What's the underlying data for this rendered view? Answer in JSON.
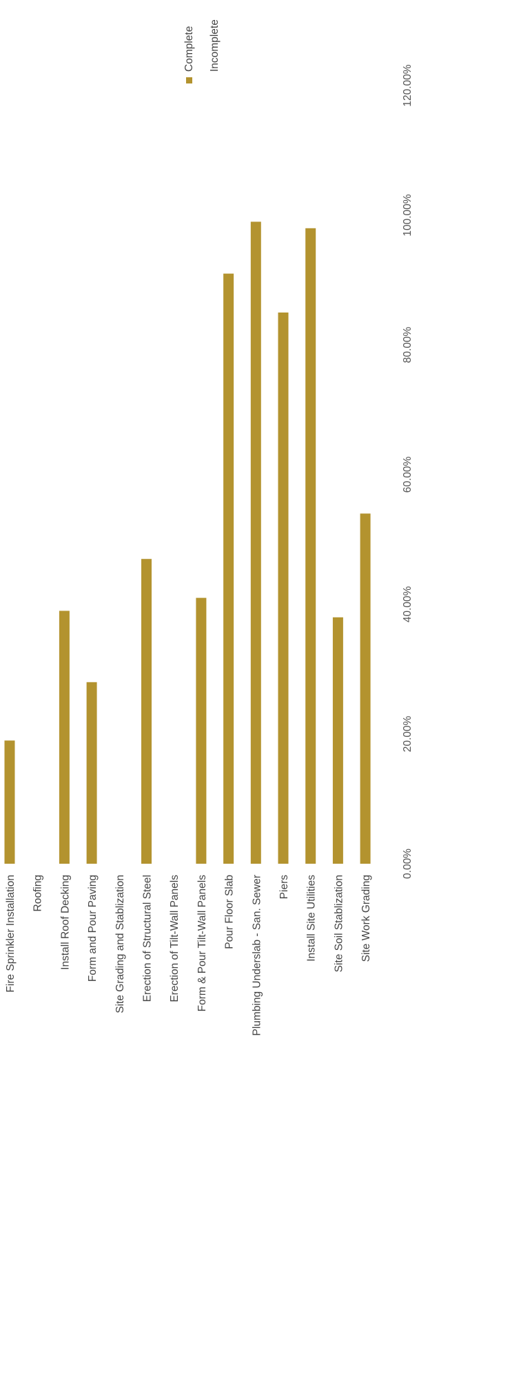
{
  "chart_data": {
    "type": "bar",
    "orientation": "rotated-90-ccw",
    "categories": [
      "Fire Sprinkler Installation",
      "Roofing",
      "Install Roof Decking",
      "Form and Pour Paving",
      "Site Grading and Stablization",
      "Erection of Structural Steel",
      "Erection of Tilt-Wall Panels",
      "Form & Pour Tilt-Wall Panels",
      "Pour Floor Slab",
      "Plumbing Underslab - San. Sewer",
      "Piers",
      "Install Site Utilities",
      "Site Soil Stablization",
      "Site Work Grading"
    ],
    "series": [
      {
        "name": "Complete",
        "values": [
          19,
          0,
          39,
          28,
          0,
          47,
          0,
          41,
          91,
          99,
          85,
          98,
          38,
          54
        ],
        "color": "#b3932f"
      },
      {
        "name": "Incomplete",
        "values": [
          0,
          0,
          0,
          0,
          0,
          0,
          0,
          0,
          0,
          0,
          0,
          0,
          0,
          0
        ]
      }
    ],
    "ticks": [
      "0.00%",
      "20.00%",
      "40.00%",
      "60.00%",
      "80.00%",
      "100.00%",
      "120.00%"
    ],
    "xlim": [
      0,
      120
    ],
    "grid": false,
    "legend": "top-right"
  }
}
